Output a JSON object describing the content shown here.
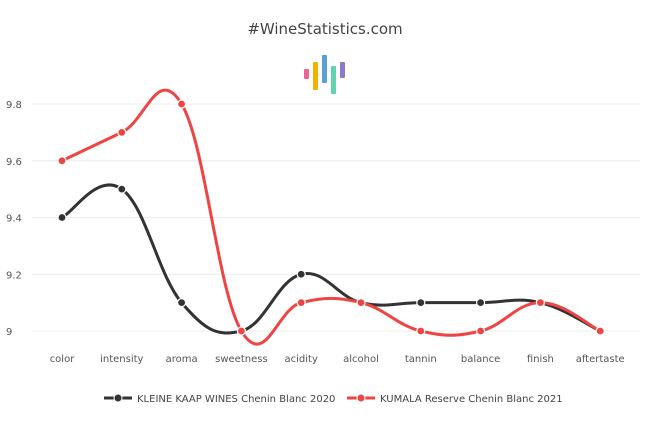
{
  "title": "#WineStatistics.com",
  "logo": {
    "icon": "bar-logo-icon",
    "colors": [
      "#f06292",
      "#f0b400",
      "#5aa0d8",
      "#5dd6b0",
      "#8b79c9"
    ]
  },
  "chart_data": {
    "type": "line",
    "smooth": true,
    "categories": [
      "color",
      "intensity",
      "aroma",
      "sweetness",
      "acidity",
      "alcohol",
      "tannin",
      "balance",
      "finish",
      "aftertaste"
    ],
    "yticks": [
      "9",
      "9.2",
      "9.4",
      "9.6",
      "9.8"
    ],
    "ylim": [
      9,
      9.8
    ],
    "grid": true,
    "legend_position": "bottom-center",
    "series": [
      {
        "name": "KLEINE KAAP WINES Chenin Blanc 2020",
        "color": "#333333",
        "values": [
          9.4,
          9.5,
          9.1,
          9.0,
          9.2,
          9.1,
          9.1,
          9.1,
          9.1,
          9.0
        ]
      },
      {
        "name": "KUMALA Reserve Chenin Blanc 2021",
        "color": "#ef4444",
        "values": [
          9.6,
          9.7,
          9.8,
          9.0,
          9.1,
          9.1,
          9.0,
          9.0,
          9.1,
          9.0
        ]
      }
    ]
  }
}
